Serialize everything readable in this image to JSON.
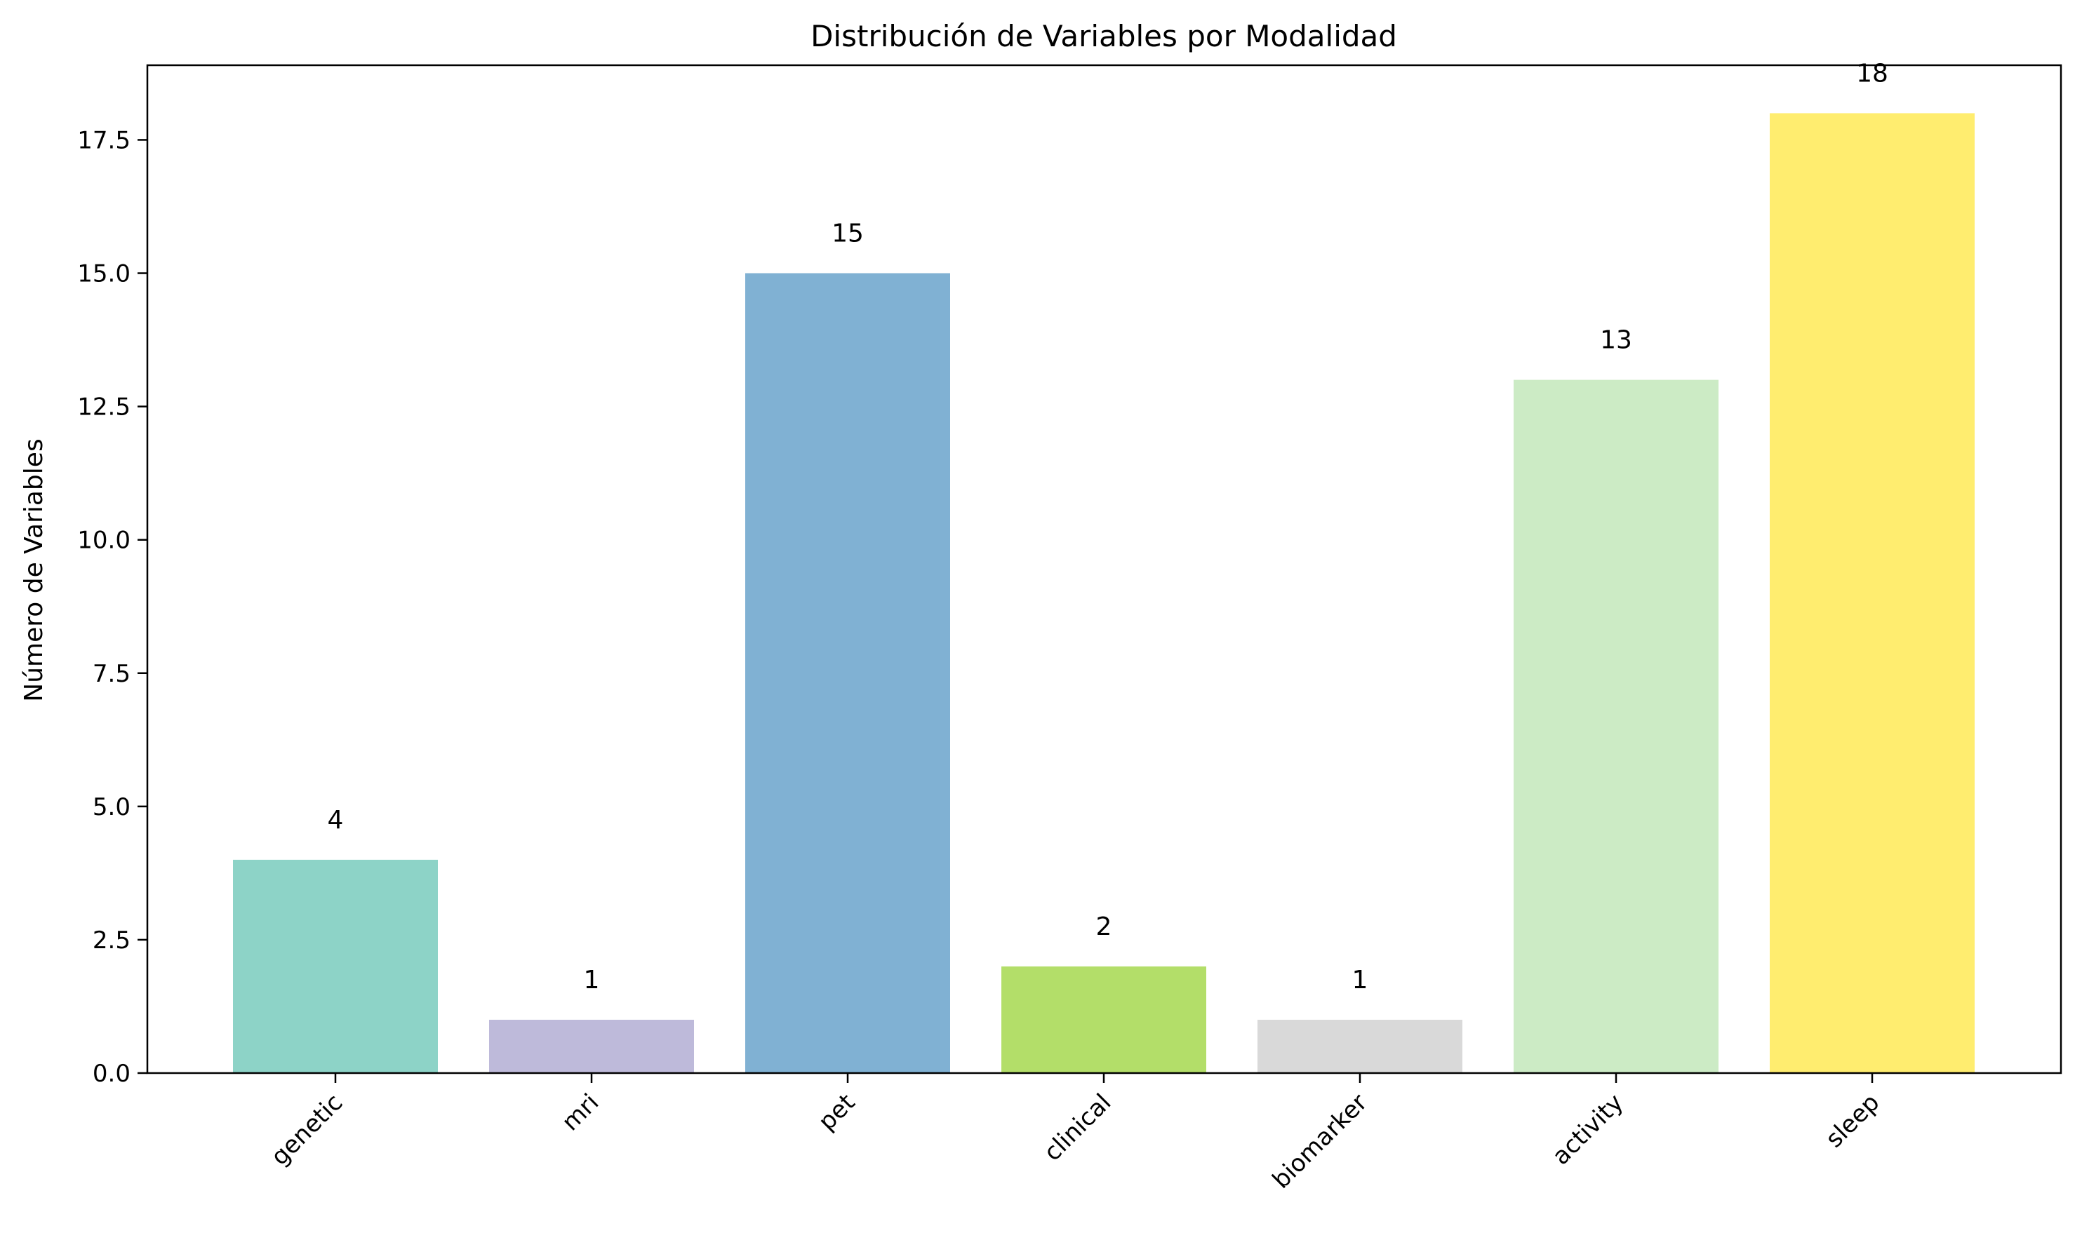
{
  "chart_data": {
    "type": "bar",
    "title": "Distribución de Variables por Modalidad",
    "xlabel": "",
    "ylabel": "Número de Variables",
    "categories": [
      "genetic",
      "mri",
      "pet",
      "clinical",
      "biomarker",
      "activity",
      "sleep"
    ],
    "values": [
      4,
      1,
      15,
      2,
      1,
      13,
      18
    ],
    "data_labels": [
      "4",
      "1",
      "15",
      "2",
      "1",
      "13",
      "18"
    ],
    "colors": [
      "#8dd3c7",
      "#bebada",
      "#80b1d3",
      "#b3de69",
      "#d9d9d9",
      "#ccebc5",
      "#ffed6f"
    ],
    "ylim": [
      0,
      18.9
    ],
    "yticks": [
      0.0,
      2.5,
      5.0,
      7.5,
      10.0,
      12.5,
      15.0,
      17.5
    ],
    "ytick_labels": [
      "0.0",
      "2.5",
      "5.0",
      "7.5",
      "10.0",
      "12.5",
      "15.0",
      "17.5"
    ],
    "grid": false,
    "legend": "none",
    "xtick_rotation": 45
  }
}
